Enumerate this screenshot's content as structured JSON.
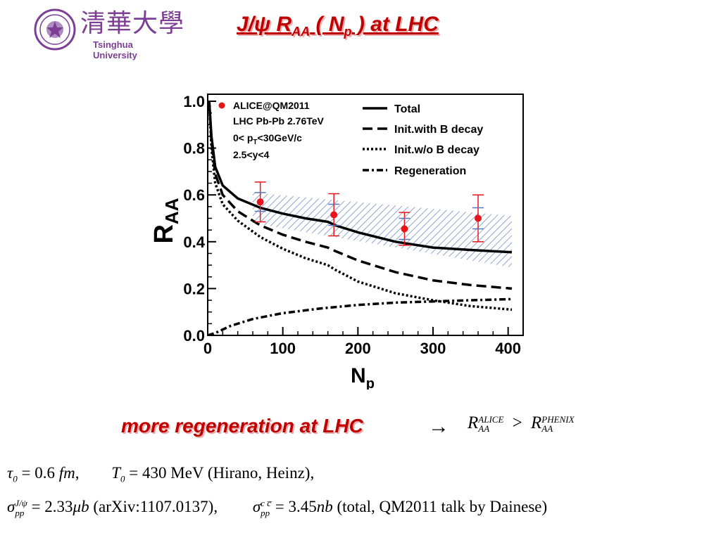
{
  "header": {
    "logo_cn": "清華大學",
    "logo_en": "Tsinghua University",
    "title_main": "J/ψ R",
    "title_sub": "AA",
    "title_mid": " ( N",
    "title_sub2": "p",
    "title_end": " ) at LHC"
  },
  "chart_data": {
    "type": "line",
    "xlabel": "N",
    "xlabel_sub": "p",
    "ylabel": "R",
    "ylabel_sub": "AA",
    "xlim": [
      0,
      420
    ],
    "ylim": [
      0,
      1.03
    ],
    "x_ticks": [
      0,
      100,
      200,
      300,
      400
    ],
    "y_ticks": [
      0.0,
      0.2,
      0.4,
      0.6,
      0.8,
      1.0
    ],
    "x_tick_labels": [
      "0",
      "100",
      "200",
      "300",
      "400"
    ],
    "y_tick_labels": [
      "0.0",
      "0.2",
      "0.4",
      "0.6",
      "0.8",
      "1.0"
    ],
    "annotation_lines": [
      "ALICE@QM2011",
      "LHC Pb-Pb 2.76TeV",
      "0< p",
      "T",
      "<30GeV/c",
      "2.5<y<4"
    ],
    "legend_position": "top-right",
    "series": [
      {
        "name": "Total",
        "style": "solid",
        "x": [
          2,
          5,
          10,
          20,
          40,
          70,
          100,
          130,
          160,
          170,
          200,
          250,
          300,
          350,
          405
        ],
        "y": [
          1.0,
          0.85,
          0.72,
          0.64,
          0.585,
          0.545,
          0.52,
          0.5,
          0.485,
          0.47,
          0.44,
          0.4,
          0.375,
          0.365,
          0.355
        ]
      },
      {
        "name": "Init.with B decay",
        "style": "dashed",
        "x": [
          2,
          5,
          10,
          20,
          40,
          70,
          100,
          130,
          160,
          170,
          200,
          250,
          300,
          350,
          405
        ],
        "y": [
          1.0,
          0.83,
          0.69,
          0.6,
          0.53,
          0.47,
          0.43,
          0.4,
          0.375,
          0.36,
          0.32,
          0.27,
          0.235,
          0.215,
          0.2
        ]
      },
      {
        "name": "Init.w/o B decay",
        "style": "dotted",
        "x": [
          2,
          5,
          10,
          20,
          40,
          70,
          100,
          130,
          160,
          170,
          200,
          250,
          300,
          350,
          405
        ],
        "y": [
          1.0,
          0.8,
          0.65,
          0.56,
          0.49,
          0.42,
          0.37,
          0.33,
          0.3,
          0.28,
          0.23,
          0.18,
          0.15,
          0.125,
          0.11
        ]
      },
      {
        "name": "Regeneration",
        "style": "dashdot",
        "x": [
          0,
          10,
          30,
          60,
          100,
          150,
          200,
          250,
          300,
          350,
          405
        ],
        "y": [
          0.0,
          0.01,
          0.04,
          0.07,
          0.095,
          0.115,
          0.13,
          0.14,
          0.145,
          0.15,
          0.155
        ]
      }
    ],
    "data_points": [
      {
        "x": 70,
        "y": 0.57,
        "err": 0.085,
        "syst": 0.04
      },
      {
        "x": 168,
        "y": 0.515,
        "err": 0.09,
        "syst": 0.045
      },
      {
        "x": 262,
        "y": 0.455,
        "err": 0.07,
        "syst": 0.045
      },
      {
        "x": 360,
        "y": 0.5,
        "err": 0.1,
        "syst": 0.045
      }
    ],
    "band": {
      "x": [
        60,
        405
      ],
      "upper": [
        0.61,
        0.51
      ],
      "lower": [
        0.48,
        0.29
      ]
    },
    "colors": {
      "data": "#e8161b",
      "band": "#5577bb",
      "axis": "#000000"
    }
  },
  "conclusion": {
    "text": "more regeneration at LHC",
    "arrow": "→",
    "r_alice_sup": "ALICE",
    "r_sub": "AA",
    "r_phenix_sup": "PHENIX",
    "gt": ">"
  },
  "formulas": {
    "line1_tau": "τ",
    "line1_tau_sub": "0",
    "line1_tau_val": "= 0.6 ",
    "line1_fm": "fm",
    "line1_comma": ",",
    "line1_T": "T",
    "line1_T_sub": "0",
    "line1_T_val": "= 430  MeV (Hirano, Heinz),",
    "line2_sigma": "σ",
    "line2_sup": "J/ψ",
    "line2_sub": "pp",
    "line2_val": "= 2.33",
    "line2_mub": "μb",
    "line2_ref": " (arXiv:1107.0137),",
    "line2_sup2": "c c̅",
    "line2_val2": "= 3.45",
    "line2_nb": "nb",
    "line2_ref2": " (total, QM2011 talk by Dainese)"
  }
}
